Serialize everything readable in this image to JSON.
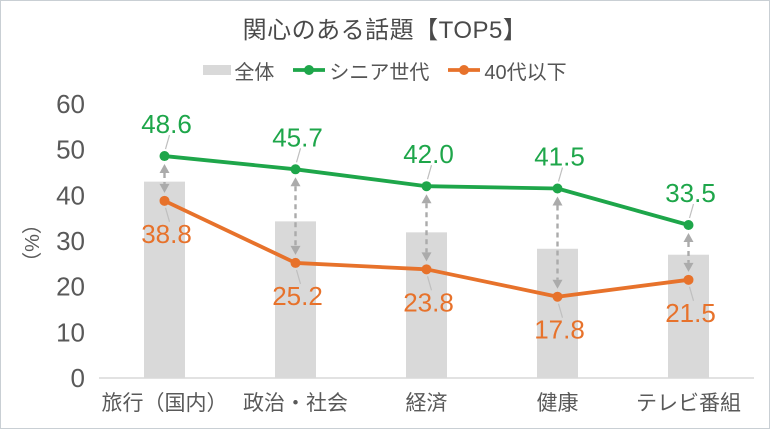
{
  "chart_data": {
    "type": "combo-bar-line",
    "title": "関心のある話題【TOP5】",
    "categories": [
      "旅行（国内）",
      "政治・社会",
      "経済",
      "健康",
      "テレビ番組"
    ],
    "series": [
      {
        "name": "全体",
        "type": "bar",
        "color": "#D9D9D9",
        "data_labels": false,
        "values_estimated_from_pixels": true,
        "values": [
          43.0,
          34.3,
          31.9,
          28.3,
          27.0
        ]
      },
      {
        "name": "シニア世代",
        "type": "line",
        "color": "#1EA64A",
        "data_labels": true,
        "values": [
          48.6,
          45.7,
          42.0,
          41.5,
          33.5
        ]
      },
      {
        "name": "40代以下",
        "type": "line",
        "color": "#E7722B",
        "data_labels": true,
        "values": [
          38.8,
          25.2,
          23.8,
          17.8,
          21.5
        ]
      }
    ],
    "ylabel": "（%）",
    "ylim": [
      0,
      60
    ],
    "yticks": [
      0,
      10,
      20,
      30,
      40,
      50,
      60
    ],
    "grid": false,
    "legend_position": "top",
    "annotations": {
      "gap_arrows": "dashed double-headed vertical arrows between シニア世代 and 40代以下 values at each category",
      "label_leader_lines": "thin gray leader lines connect each data label to its marker"
    }
  },
  "colors": {
    "bar_gray": "#D9D9D9",
    "line_green": "#1EA64A",
    "line_orange": "#E7722B",
    "arrow_gray": "#ABABAB",
    "leader_gray": "#BFBFBF",
    "axis_text": "#595959",
    "title_text": "#4A4A4A",
    "axis_line": "#D9D9D9",
    "frame_border": "#C9CFD4"
  }
}
